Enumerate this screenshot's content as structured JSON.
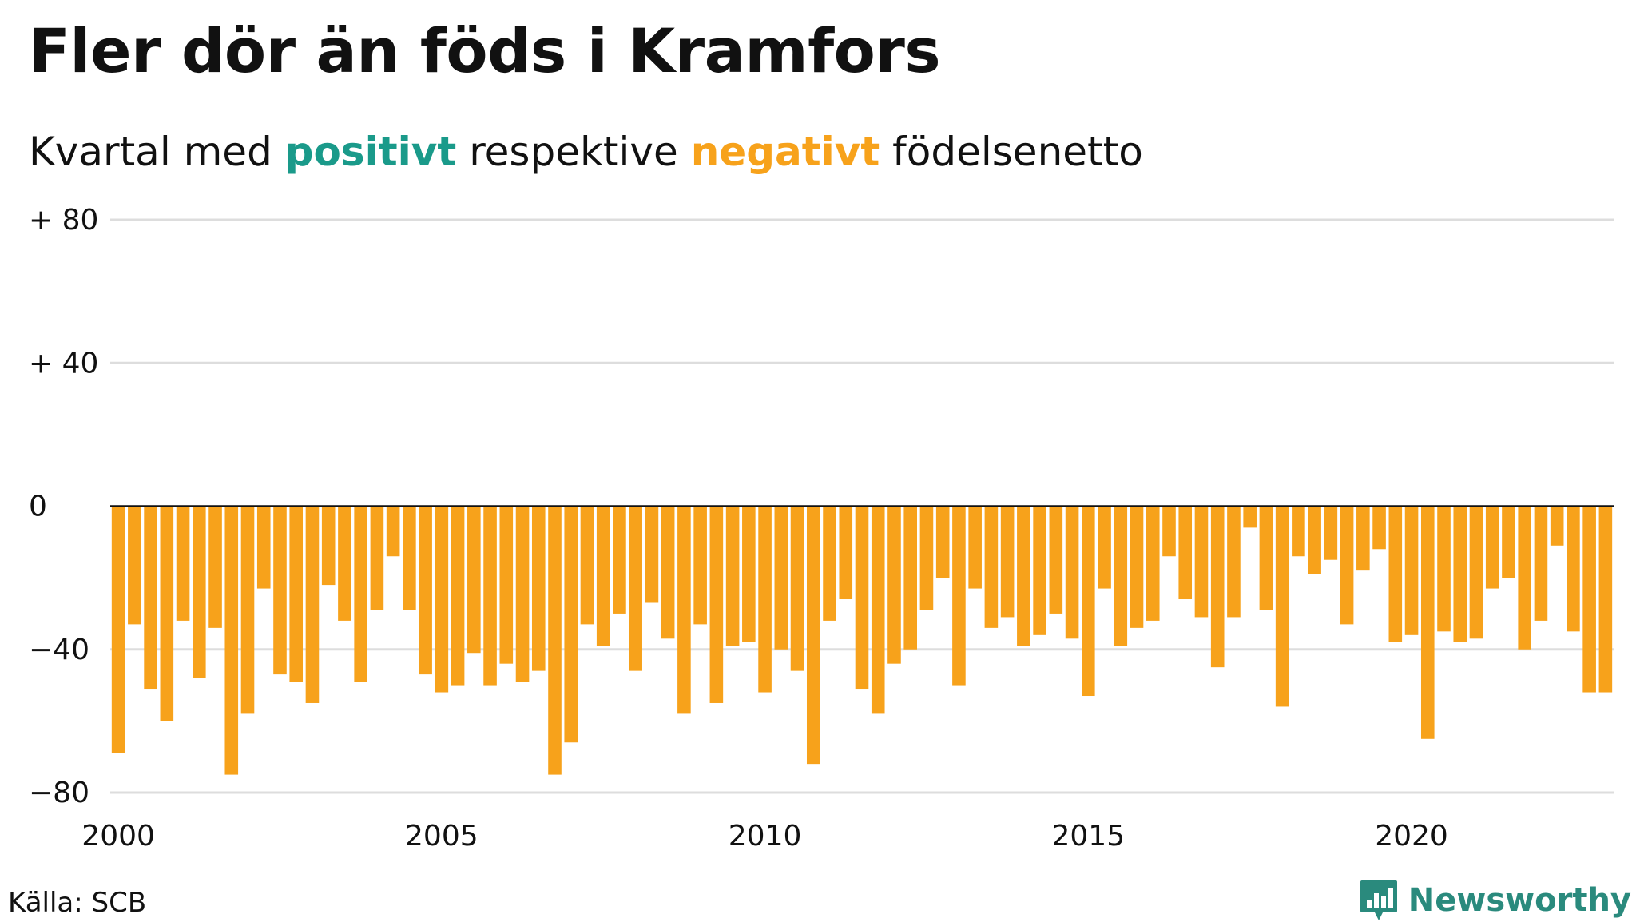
{
  "title": "Fler dör än föds i Kramfors",
  "subtitle": {
    "prefix": "Kvartal med",
    "positive_word": "positivt",
    "middle": "respektive",
    "negative_word": "negativt",
    "suffix": "födelsenetto"
  },
  "colors": {
    "positive": "#1a9a8a",
    "negative": "#f7a21b",
    "grid": "#dddddd",
    "zero_line": "#111111",
    "brand": "#2a8a7d"
  },
  "source": "Källa: SCB",
  "brand": "Newsworthy",
  "chart_data": {
    "type": "bar",
    "ylim": [
      -80,
      80
    ],
    "y_ticks": [
      {
        "value": 80,
        "label": "+ 80"
      },
      {
        "value": 40,
        "label": "+ 40"
      },
      {
        "value": 0,
        "label": "0"
      },
      {
        "value": -40,
        "label": "−40"
      },
      {
        "value": -80,
        "label": "−80"
      }
    ],
    "x_ticks": [
      "2000",
      "2005",
      "2010",
      "2015",
      "2020"
    ],
    "first_year": 2000,
    "periods_per_year": 4,
    "values": [
      -69,
      -33,
      -51,
      -60,
      -32,
      -48,
      -34,
      -75,
      -58,
      -23,
      -47,
      -49,
      -55,
      -22,
      -32,
      -49,
      -29,
      -14,
      -29,
      -47,
      -52,
      -50,
      -41,
      -50,
      -44,
      -49,
      -46,
      -75,
      -66,
      -33,
      -39,
      -30,
      -46,
      -27,
      -37,
      -58,
      -33,
      -55,
      -39,
      -38,
      -52,
      -40,
      -46,
      -72,
      -32,
      -26,
      -51,
      -58,
      -44,
      -40,
      -29,
      -20,
      -50,
      -23,
      -34,
      -31,
      -39,
      -36,
      -30,
      -37,
      -53,
      -23,
      -39,
      -34,
      -32,
      -14,
      -26,
      -31,
      -45,
      -31,
      -6,
      -29,
      -56,
      -14,
      -19,
      -15,
      -33,
      -18,
      -12,
      -38,
      -36,
      -65,
      -35,
      -38,
      -37,
      -23,
      -20,
      -40,
      -32,
      -11,
      -35,
      -52,
      -52
    ]
  }
}
